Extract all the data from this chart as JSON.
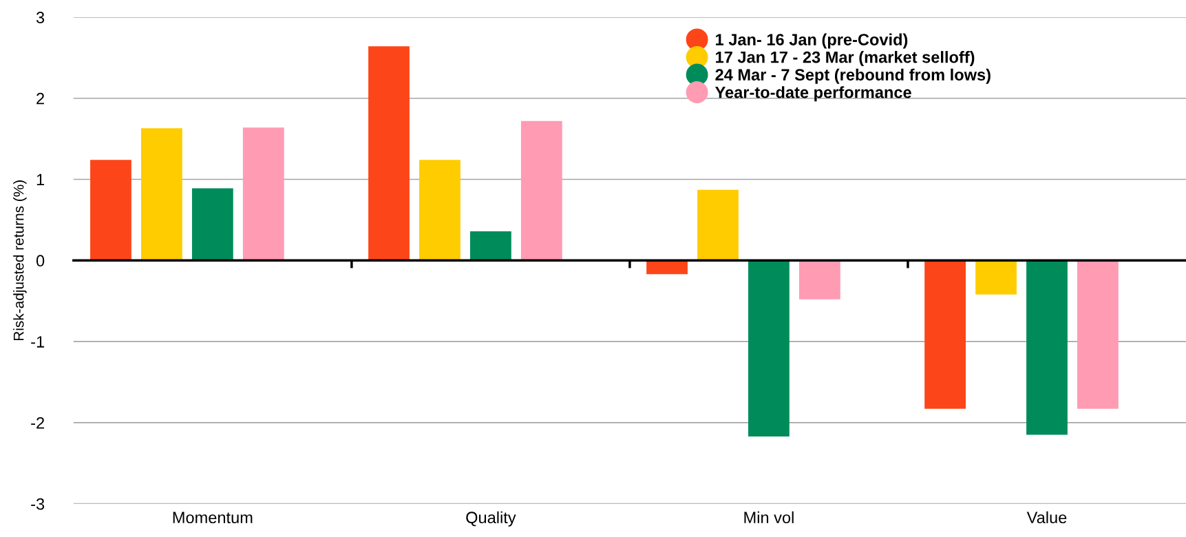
{
  "chart_data": {
    "type": "bar",
    "ylabel": "Risk-adjusted returns (%)",
    "categories": [
      "Momentum",
      "Quality",
      "Min vol",
      "Value"
    ],
    "series": [
      {
        "name": "1 Jan- 16 Jan (pre-Covid)",
        "color": "#fc4619",
        "values": [
          1.24,
          2.64,
          -0.17,
          -1.83
        ]
      },
      {
        "name": "17 Jan 17 - 23 Mar (market selloff)",
        "color": "#ffcc00",
        "values": [
          1.63,
          1.24,
          0.87,
          -0.42
        ]
      },
      {
        "name": "24 Mar - 7 Sept (rebound from lows)",
        "color": "#008c5a",
        "values": [
          0.89,
          0.36,
          -2.17,
          -2.15
        ]
      },
      {
        "name": "Year-to-date performance",
        "color": "#ff9bb3",
        "values": [
          1.64,
          1.72,
          -0.48,
          -1.83
        ]
      }
    ],
    "ylim": [
      -3,
      3
    ],
    "yticks": [
      {
        "value": -3,
        "label": "-3"
      },
      {
        "value": -2,
        "label": "-2"
      },
      {
        "value": -1,
        "label": "-1"
      },
      0,
      1,
      2,
      3
    ],
    "grid": "y",
    "legend": "top right"
  }
}
